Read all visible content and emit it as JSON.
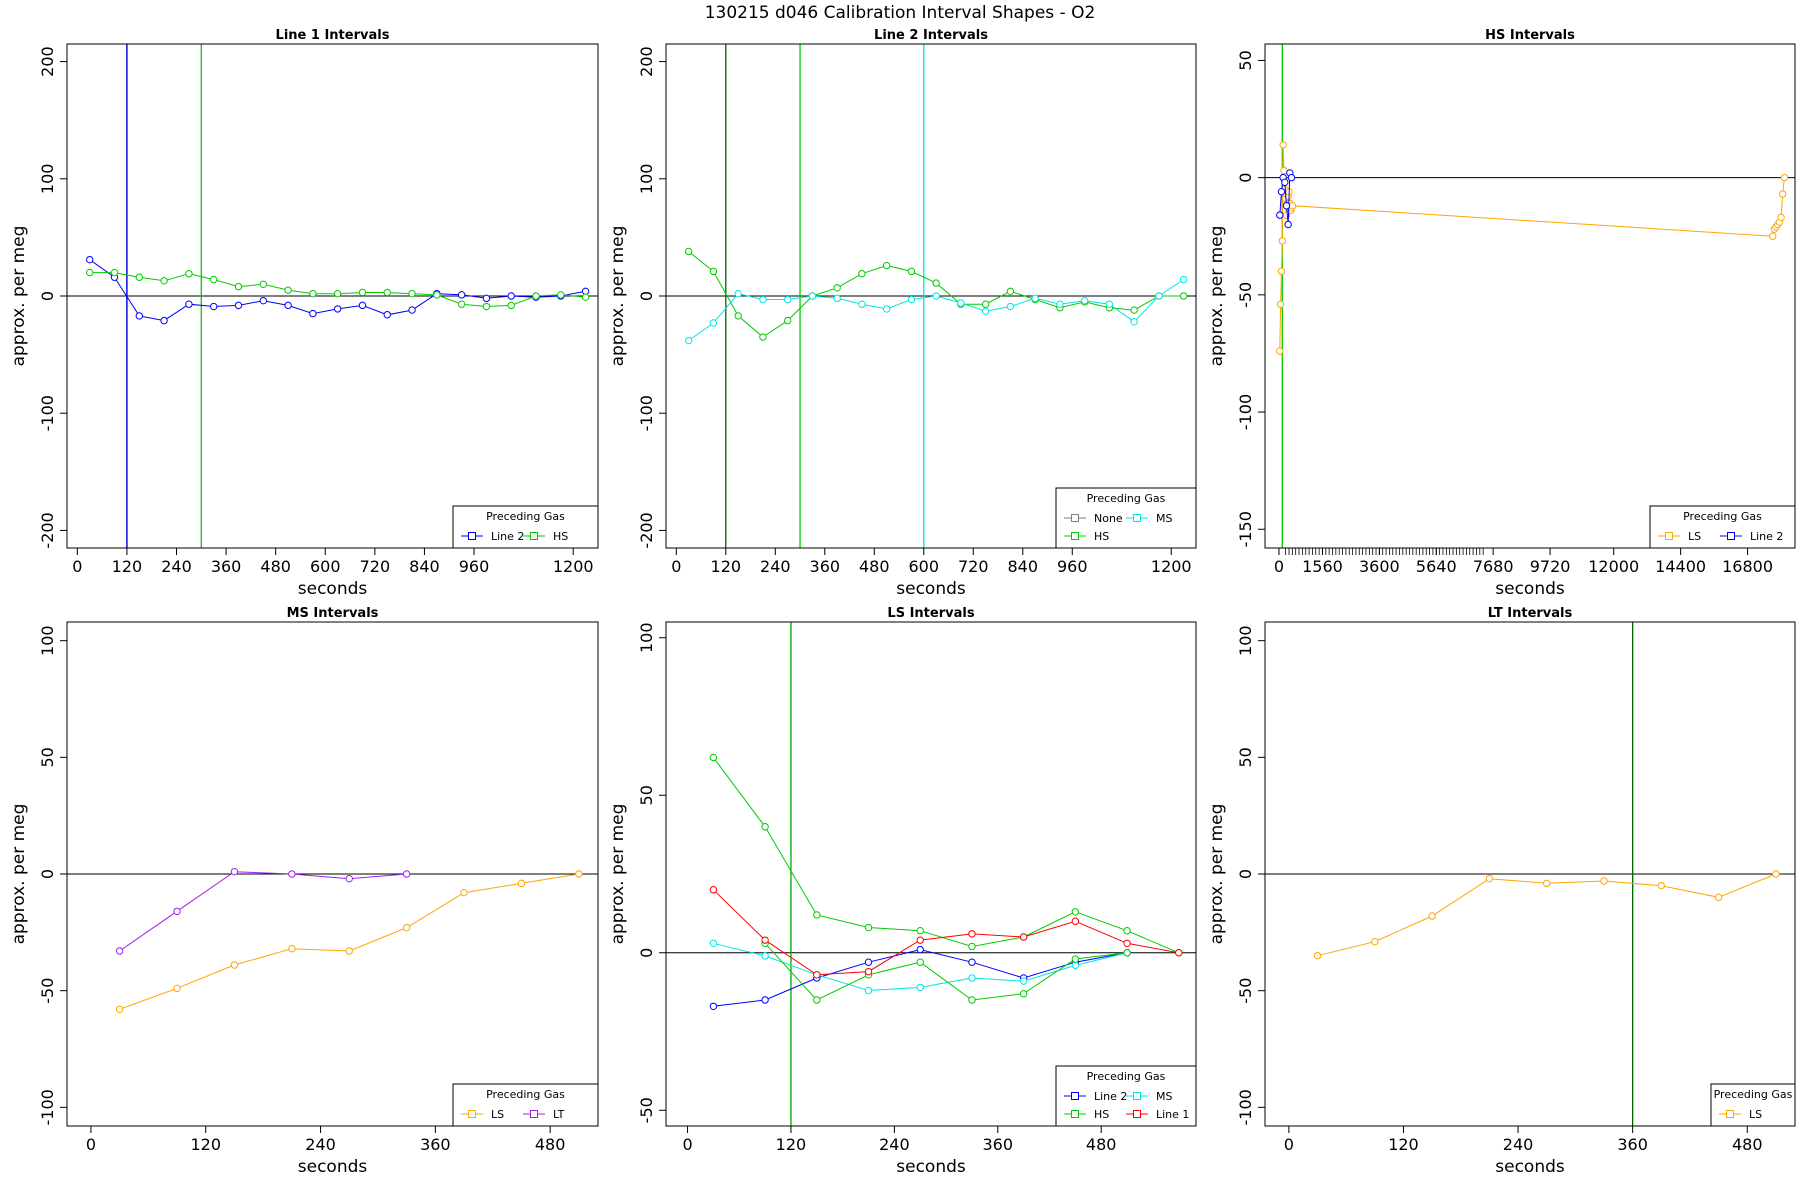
{
  "figure": {
    "title": "130215   d046   Calibration Interval Shapes - O2"
  },
  "colors": {
    "blue": "#0000ff",
    "green": "#00cc00",
    "cyan": "#00e5e5",
    "orange": "#ffa500",
    "purple": "#a020f0",
    "red": "#ff0000",
    "darkgreen": "#006400",
    "gray": "#808080"
  },
  "chart_data": [
    {
      "type": "line",
      "title": "Line 1 Intervals",
      "xlabel": "seconds",
      "ylabel": "approx. per meg",
      "xlim": [
        -25,
        1260
      ],
      "ylim": [
        -215,
        215
      ],
      "xticks": [
        0,
        120,
        240,
        360,
        480,
        600,
        720,
        840,
        960,
        1200
      ],
      "yticks": [
        -200,
        -100,
        0,
        100,
        200
      ],
      "hline": 0,
      "vlines": [
        {
          "x": 120,
          "color": "#006400"
        },
        {
          "x": 120,
          "color": "#0000ff"
        },
        {
          "x": 300,
          "color": "#00cc00"
        }
      ],
      "series": [
        {
          "name": "Line 2",
          "color": "#0000ff",
          "x": [
            30,
            90,
            150,
            210,
            270,
            330,
            390,
            450,
            510,
            570,
            630,
            690,
            750,
            810,
            870,
            930,
            990,
            1050,
            1110,
            1170,
            1230
          ],
          "y": [
            31,
            16,
            -17,
            -21,
            -7,
            -9,
            -8,
            -4,
            -8,
            -15,
            -11,
            -8,
            -16,
            -12,
            2,
            1,
            -2,
            0,
            -1,
            0,
            4
          ]
        },
        {
          "name": "HS",
          "color": "#00cc00",
          "x": [
            30,
            90,
            150,
            210,
            270,
            330,
            390,
            450,
            510,
            570,
            630,
            690,
            750,
            810,
            870,
            930,
            990,
            1050,
            1110,
            1170,
            1230
          ],
          "y": [
            20,
            20,
            16,
            13,
            19,
            14,
            8,
            10,
            5,
            2,
            2,
            3,
            3,
            2,
            1,
            -7,
            -9,
            -8,
            0,
            1,
            -1
          ]
        }
      ],
      "legend": {
        "title": "Preceding Gas",
        "position": "bottom-right",
        "entries": [
          "Line 2",
          "HS"
        ]
      }
    },
    {
      "type": "line",
      "title": "Line 2 Intervals",
      "xlabel": "seconds",
      "ylabel": "approx. per meg",
      "xlim": [
        -25,
        1260
      ],
      "ylim": [
        -215,
        215
      ],
      "xticks": [
        0,
        120,
        240,
        360,
        480,
        600,
        720,
        840,
        960,
        1200
      ],
      "yticks": [
        -200,
        -100,
        0,
        100,
        200
      ],
      "hline": 0,
      "vlines": [
        {
          "x": 120,
          "color": "#006400"
        },
        {
          "x": 300,
          "color": "#00cc00"
        },
        {
          "x": 600,
          "color": "#00e5e5"
        }
      ],
      "series": [
        {
          "name": "None",
          "color": "#808080",
          "x": [],
          "y": []
        },
        {
          "name": "HS",
          "color": "#00cc00",
          "x": [
            30,
            90,
            150,
            210,
            270,
            330,
            390,
            450,
            510,
            570,
            630,
            690,
            750,
            810,
            870,
            930,
            990,
            1050,
            1110,
            1170,
            1230
          ],
          "y": [
            38,
            21,
            -17,
            -35,
            -21,
            0,
            7,
            19,
            26,
            21,
            11,
            -7,
            -7,
            4,
            -3,
            -10,
            -5,
            -10,
            -12,
            0,
            0
          ]
        },
        {
          "name": "MS",
          "color": "#00e5e5",
          "x": [
            30,
            90,
            150,
            210,
            270,
            330,
            390,
            450,
            510,
            570,
            630,
            690,
            750,
            810,
            870,
            930,
            990,
            1050,
            1110,
            1170,
            1230
          ],
          "y": [
            -38,
            -23,
            2,
            -3,
            -3,
            0,
            -2,
            -7,
            -11,
            -3,
            0,
            -6,
            -13,
            -9,
            -2,
            -7,
            -4,
            -7,
            -22,
            0,
            14
          ]
        }
      ],
      "legend": {
        "title": "Preceding Gas",
        "position": "bottom-right",
        "entries": [
          "None",
          "MS",
          "HS"
        ]
      }
    },
    {
      "type": "line",
      "title": "HS Intervals",
      "xlabel": "seconds",
      "ylabel": "approx. per meg",
      "xlim": [
        -500,
        18500
      ],
      "ylim": [
        -158,
        57
      ],
      "xticks": [
        0,
        1560,
        3600,
        5640,
        7680,
        9720,
        12000,
        14400,
        16800
      ],
      "yticks": [
        -150,
        -100,
        -50,
        0,
        50
      ],
      "hline": 0,
      "vlines": [
        {
          "x": 120,
          "color": "#00cc00"
        }
      ],
      "series": [
        {
          "name": "LS",
          "color": "#ffa500",
          "x": [
            30,
            60,
            90,
            120,
            150,
            180,
            210,
            240,
            270,
            300,
            330,
            360,
            390,
            420,
            450,
            480,
            17700,
            17760,
            17820,
            17880,
            17940,
            18000,
            18060,
            18120
          ],
          "y": [
            -74,
            -54,
            -40,
            -27,
            14,
            3,
            -5,
            -9,
            -16,
            -11,
            -8,
            -6,
            -11,
            -14,
            -13,
            -12,
            -25,
            -22,
            -21,
            -20,
            -19,
            -17,
            -7,
            0
          ]
        },
        {
          "name": "Line 2",
          "color": "#0000ff",
          "x": [
            30,
            90,
            150,
            210,
            270,
            330,
            390,
            450
          ],
          "y": [
            -16,
            -6,
            0,
            -2,
            -12,
            -20,
            2,
            0
          ]
        }
      ],
      "legend": {
        "title": "Preceding Gas",
        "position": "bottom-right",
        "entries": [
          "LS",
          "Line 2"
        ]
      }
    },
    {
      "type": "line",
      "title": "MS Intervals",
      "xlabel": "seconds",
      "ylabel": "approx. per meg",
      "xlim": [
        -25,
        530
      ],
      "ylim": [
        -108,
        108
      ],
      "xticks": [
        0,
        120,
        240,
        360,
        480
      ],
      "yticks": [
        -100,
        -50,
        0,
        50,
        100
      ],
      "hline": 0,
      "vlines": [],
      "series": [
        {
          "name": "LS",
          "color": "#ffa500",
          "x": [
            30,
            90,
            150,
            210,
            270,
            330,
            390,
            450,
            510
          ],
          "y": [
            -58,
            -49,
            -39,
            -32,
            -33,
            -23,
            -8,
            -4,
            0
          ]
        },
        {
          "name": "LT",
          "color": "#a020f0",
          "x": [
            30,
            90,
            150,
            210,
            270,
            330
          ],
          "y": [
            -33,
            -16,
            1,
            0,
            -2,
            0
          ]
        }
      ],
      "legend": {
        "title": "Preceding Gas",
        "position": "bottom-right",
        "entries": [
          "LS",
          "LT"
        ]
      }
    },
    {
      "type": "line",
      "title": "LS Intervals",
      "xlabel": "seconds",
      "ylabel": "approx. per meg",
      "xlim": [
        -25,
        590
      ],
      "ylim": [
        -55,
        105
      ],
      "xticks": [
        0,
        120,
        240,
        360,
        480
      ],
      "yticks": [
        -50,
        0,
        50,
        100
      ],
      "hline": 0,
      "vlines": [
        {
          "x": 120,
          "color": "#00aa00"
        }
      ],
      "series": [
        {
          "name": "Line 2",
          "color": "#0000ff",
          "x": [
            30,
            90,
            150,
            210,
            270,
            330,
            390,
            450,
            510
          ],
          "y": [
            -17,
            -15,
            -8,
            -3,
            1,
            -3,
            -8,
            -3,
            0
          ]
        },
        {
          "name": "MS",
          "color": "#00e5e5",
          "x": [
            30,
            90,
            150,
            210,
            270,
            330,
            390,
            450,
            510
          ],
          "y": [
            3,
            -1,
            -7,
            -12,
            -11,
            -8,
            -9,
            -4,
            0
          ]
        },
        {
          "name": "HS",
          "color": "#00cc00",
          "x": [
            30,
            90,
            150,
            210,
            270,
            330,
            390,
            450,
            510,
            570
          ],
          "y": [
            62,
            40,
            12,
            8,
            7,
            2,
            5,
            13,
            7,
            0
          ]
        },
        {
          "name": "HS",
          "color": "#00cc00",
          "x": [
            90,
            150,
            210,
            270,
            330,
            390,
            450,
            510
          ],
          "y": [
            3,
            -15,
            -7,
            -3,
            -15,
            -13,
            -2,
            0
          ]
        },
        {
          "name": "Line 1",
          "color": "#ff0000",
          "x": [
            30,
            90,
            150,
            210,
            270,
            330,
            390,
            450,
            510,
            570
          ],
          "y": [
            20,
            4,
            -7,
            -6,
            4,
            6,
            5,
            10,
            3,
            0
          ]
        }
      ],
      "legend": {
        "title": "Preceding Gas",
        "position": "bottom-right",
        "entries": [
          "Line 2",
          "MS",
          "HS",
          "Line 1"
        ]
      }
    },
    {
      "type": "line",
      "title": "LT Intervals",
      "xlabel": "seconds",
      "ylabel": "approx. per meg",
      "xlim": [
        -25,
        530
      ],
      "ylim": [
        -108,
        108
      ],
      "xticks": [
        0,
        120,
        240,
        360,
        480
      ],
      "yticks": [
        -100,
        -50,
        0,
        50,
        100
      ],
      "hline": 0,
      "vlines": [
        {
          "x": 360,
          "color": "#006400"
        }
      ],
      "series": [
        {
          "name": "LS",
          "color": "#ffa500",
          "x": [
            30,
            90,
            150,
            210,
            270,
            330,
            390,
            450,
            510
          ],
          "y": [
            -35,
            -29,
            -18,
            -2,
            -4,
            -3,
            -5,
            -10,
            0
          ]
        }
      ],
      "legend": {
        "title": "Preceding Gas",
        "position": "bottom-right",
        "entries": [
          "LS"
        ]
      }
    }
  ]
}
